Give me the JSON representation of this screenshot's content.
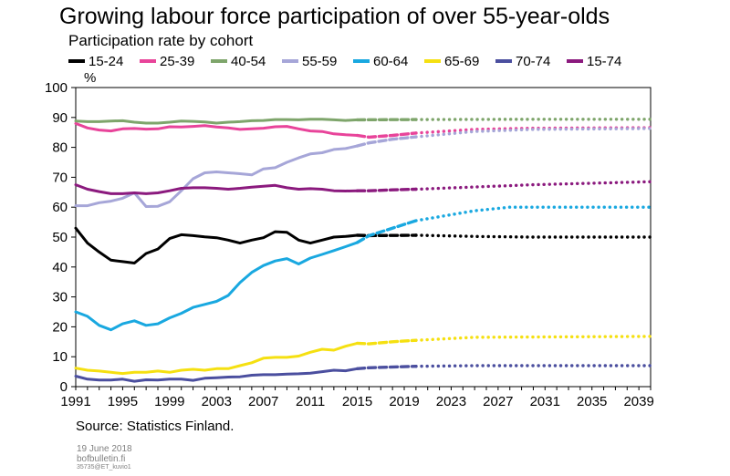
{
  "title": "Growing labour force participation of over 55-year-olds",
  "subtitle": "Participation rate by cohort",
  "source": "Source: Statistics Finland.",
  "footer": {
    "date": "19 June 2018",
    "site": "bofbulletin.fi",
    "code": "35735@ET_kuvio1"
  },
  "chart_data": {
    "type": "line",
    "ylabel": "%",
    "xlim": [
      1991,
      2040
    ],
    "ylim": [
      0,
      100
    ],
    "yticks": [
      0,
      10,
      20,
      30,
      40,
      50,
      60,
      70,
      80,
      90,
      100
    ],
    "xticks": [
      1991,
      1995,
      1999,
      2003,
      2007,
      2011,
      2015,
      2019,
      2023,
      2027,
      2031,
      2035,
      2039
    ],
    "grid": false,
    "legend_position": "top",
    "segments": [
      {
        "style": "solid",
        "range": [
          1991,
          2015
        ]
      },
      {
        "style": "dashed",
        "range": [
          2015,
          2020
        ]
      },
      {
        "style": "dotted",
        "range": [
          2020,
          2040
        ]
      }
    ],
    "series": [
      {
        "name": "15-24",
        "color": "#000000",
        "points": [
          [
            1991,
            53
          ],
          [
            1992,
            48
          ],
          [
            1993,
            45
          ],
          [
            1994,
            42.3
          ],
          [
            1995,
            41.8
          ],
          [
            1996,
            41.3
          ],
          [
            1997,
            44.5
          ],
          [
            1998,
            46
          ],
          [
            1999,
            49.5
          ],
          [
            2000,
            50.8
          ],
          [
            2001,
            50.5
          ],
          [
            2002,
            50.1
          ],
          [
            2003,
            49.8
          ],
          [
            2004,
            49
          ],
          [
            2005,
            48
          ],
          [
            2006,
            49
          ],
          [
            2007,
            49.8
          ],
          [
            2008,
            51.8
          ],
          [
            2009,
            51.6
          ],
          [
            2010,
            49
          ],
          [
            2011,
            48
          ],
          [
            2012,
            49
          ],
          [
            2013,
            50
          ],
          [
            2014,
            50.2
          ],
          [
            2015,
            50.6
          ],
          [
            2016,
            50.5
          ],
          [
            2020,
            50.6
          ],
          [
            2025,
            50.2
          ],
          [
            2030,
            50
          ],
          [
            2040,
            50
          ]
        ]
      },
      {
        "name": "25-39",
        "color": "#e8449a",
        "points": [
          [
            1991,
            88
          ],
          [
            1992,
            86.5
          ],
          [
            1993,
            85.8
          ],
          [
            1994,
            85.5
          ],
          [
            1995,
            86.2
          ],
          [
            1996,
            86.3
          ],
          [
            1997,
            86.1
          ],
          [
            1998,
            86.2
          ],
          [
            1999,
            86.9
          ],
          [
            2000,
            86.8
          ],
          [
            2001,
            87
          ],
          [
            2002,
            87.3
          ],
          [
            2003,
            86.8
          ],
          [
            2004,
            86.5
          ],
          [
            2005,
            86
          ],
          [
            2006,
            86.2
          ],
          [
            2007,
            86.4
          ],
          [
            2008,
            86.9
          ],
          [
            2009,
            87
          ],
          [
            2010,
            86.2
          ],
          [
            2011,
            85.5
          ],
          [
            2012,
            85.3
          ],
          [
            2013,
            84.5
          ],
          [
            2014,
            84.2
          ],
          [
            2015,
            84
          ],
          [
            2016,
            83.4
          ],
          [
            2018,
            84
          ],
          [
            2020,
            84.8
          ],
          [
            2025,
            86
          ],
          [
            2030,
            86.4
          ],
          [
            2040,
            86.6
          ]
        ]
      },
      {
        "name": "40-54",
        "color": "#7ea56b",
        "points": [
          [
            1991,
            88.8
          ],
          [
            1992,
            88.6
          ],
          [
            1993,
            88.6
          ],
          [
            1994,
            88.8
          ],
          [
            1995,
            88.9
          ],
          [
            1996,
            88.4
          ],
          [
            1997,
            88.1
          ],
          [
            1998,
            88.1
          ],
          [
            1999,
            88.4
          ],
          [
            2000,
            88.8
          ],
          [
            2001,
            88.7
          ],
          [
            2002,
            88.5
          ],
          [
            2003,
            88.1
          ],
          [
            2004,
            88.4
          ],
          [
            2005,
            88.6
          ],
          [
            2006,
            88.9
          ],
          [
            2007,
            89
          ],
          [
            2008,
            89.3
          ],
          [
            2009,
            89.3
          ],
          [
            2010,
            89.2
          ],
          [
            2011,
            89.4
          ],
          [
            2012,
            89.4
          ],
          [
            2013,
            89.2
          ],
          [
            2014,
            89
          ],
          [
            2015,
            89.2
          ],
          [
            2020,
            89.3
          ],
          [
            2030,
            89.4
          ],
          [
            2040,
            89.4
          ]
        ]
      },
      {
        "name": "55-59",
        "color": "#a6a6d8",
        "points": [
          [
            1991,
            60.5
          ],
          [
            1992,
            60.5
          ],
          [
            1993,
            61.5
          ],
          [
            1994,
            62
          ],
          [
            1995,
            63
          ],
          [
            1996,
            64.8
          ],
          [
            1997,
            60.2
          ],
          [
            1998,
            60.3
          ],
          [
            1999,
            61.8
          ],
          [
            2000,
            65.5
          ],
          [
            2001,
            69.5
          ],
          [
            2002,
            71.5
          ],
          [
            2003,
            71.8
          ],
          [
            2004,
            71.5
          ],
          [
            2005,
            71.2
          ],
          [
            2006,
            70.8
          ],
          [
            2007,
            72.8
          ],
          [
            2008,
            73.2
          ],
          [
            2009,
            75
          ],
          [
            2010,
            76.5
          ],
          [
            2011,
            77.8
          ],
          [
            2012,
            78.2
          ],
          [
            2013,
            79.3
          ],
          [
            2014,
            79.6
          ],
          [
            2015,
            80.5
          ],
          [
            2016,
            81.5
          ],
          [
            2018,
            82.7
          ],
          [
            2020,
            83.5
          ],
          [
            2025,
            85.3
          ],
          [
            2030,
            86
          ],
          [
            2040,
            86.3
          ]
        ]
      },
      {
        "name": "60-64",
        "color": "#19a8e0",
        "points": [
          [
            1991,
            25
          ],
          [
            1992,
            23.5
          ],
          [
            1993,
            20.5
          ],
          [
            1994,
            19
          ],
          [
            1995,
            21
          ],
          [
            1996,
            22
          ],
          [
            1997,
            20.5
          ],
          [
            1998,
            21
          ],
          [
            1999,
            23
          ],
          [
            2000,
            24.5
          ],
          [
            2001,
            26.5
          ],
          [
            2002,
            27.5
          ],
          [
            2003,
            28.5
          ],
          [
            2004,
            30.5
          ],
          [
            2005,
            34.8
          ],
          [
            2006,
            38.2
          ],
          [
            2007,
            40.5
          ],
          [
            2008,
            42
          ],
          [
            2009,
            42.8
          ],
          [
            2010,
            41
          ],
          [
            2011,
            43
          ],
          [
            2012,
            44.2
          ],
          [
            2013,
            45.5
          ],
          [
            2014,
            46.8
          ],
          [
            2015,
            48.2
          ],
          [
            2016,
            50.5
          ],
          [
            2018,
            53
          ],
          [
            2020,
            55.5
          ],
          [
            2025,
            58.8
          ],
          [
            2028,
            60
          ],
          [
            2040,
            60
          ]
        ]
      },
      {
        "name": "65-69",
        "color": "#f5e011",
        "points": [
          [
            1991,
            6.2
          ],
          [
            1992,
            5.5
          ],
          [
            1993,
            5.2
          ],
          [
            1994,
            4.8
          ],
          [
            1995,
            4.4
          ],
          [
            1996,
            4.8
          ],
          [
            1997,
            4.8
          ],
          [
            1998,
            5.2
          ],
          [
            1999,
            4.8
          ],
          [
            2000,
            5.5
          ],
          [
            2001,
            5.8
          ],
          [
            2002,
            5.5
          ],
          [
            2003,
            6
          ],
          [
            2004,
            6
          ],
          [
            2005,
            7
          ],
          [
            2006,
            8
          ],
          [
            2007,
            9.5
          ],
          [
            2008,
            9.8
          ],
          [
            2009,
            9.8
          ],
          [
            2010,
            10.2
          ],
          [
            2011,
            11.5
          ],
          [
            2012,
            12.5
          ],
          [
            2013,
            12.2
          ],
          [
            2014,
            13.5
          ],
          [
            2015,
            14.5
          ],
          [
            2016,
            14.3
          ],
          [
            2018,
            15
          ],
          [
            2020,
            15.5
          ],
          [
            2025,
            16.5
          ],
          [
            2040,
            16.8
          ]
        ]
      },
      {
        "name": "70-74",
        "color": "#4b4f9f",
        "points": [
          [
            1991,
            3.5
          ],
          [
            1992,
            2.5
          ],
          [
            1993,
            2.2
          ],
          [
            1994,
            2.2
          ],
          [
            1995,
            2.5
          ],
          [
            1996,
            1.8
          ],
          [
            1997,
            2.3
          ],
          [
            1998,
            2.2
          ],
          [
            1999,
            2.5
          ],
          [
            2000,
            2.5
          ],
          [
            2001,
            2.1
          ],
          [
            2002,
            2.8
          ],
          [
            2003,
            3
          ],
          [
            2004,
            3.2
          ],
          [
            2005,
            3.3
          ],
          [
            2006,
            3.8
          ],
          [
            2007,
            4
          ],
          [
            2008,
            4
          ],
          [
            2009,
            4.2
          ],
          [
            2010,
            4.3
          ],
          [
            2011,
            4.5
          ],
          [
            2012,
            5
          ],
          [
            2013,
            5.5
          ],
          [
            2014,
            5.3
          ],
          [
            2015,
            6
          ],
          [
            2016,
            6.3
          ],
          [
            2020,
            6.8
          ],
          [
            2025,
            7
          ],
          [
            2040,
            7
          ]
        ]
      },
      {
        "name": "15-74",
        "color": "#8b1a7e",
        "points": [
          [
            1991,
            67.5
          ],
          [
            1992,
            66
          ],
          [
            1993,
            65.2
          ],
          [
            1994,
            64.5
          ],
          [
            1995,
            64.5
          ],
          [
            1996,
            64.8
          ],
          [
            1997,
            64.5
          ],
          [
            1998,
            64.8
          ],
          [
            1999,
            65.5
          ],
          [
            2000,
            66.3
          ],
          [
            2001,
            66.5
          ],
          [
            2002,
            66.5
          ],
          [
            2003,
            66.3
          ],
          [
            2004,
            66
          ],
          [
            2005,
            66.3
          ],
          [
            2006,
            66.7
          ],
          [
            2007,
            67
          ],
          [
            2008,
            67.3
          ],
          [
            2009,
            66.5
          ],
          [
            2010,
            66
          ],
          [
            2011,
            66.2
          ],
          [
            2012,
            66
          ],
          [
            2013,
            65.5
          ],
          [
            2014,
            65.4
          ],
          [
            2015,
            65.5
          ],
          [
            2016,
            65.5
          ],
          [
            2018,
            65.8
          ],
          [
            2020,
            66
          ],
          [
            2030,
            67.5
          ],
          [
            2040,
            68.5
          ]
        ]
      }
    ]
  }
}
